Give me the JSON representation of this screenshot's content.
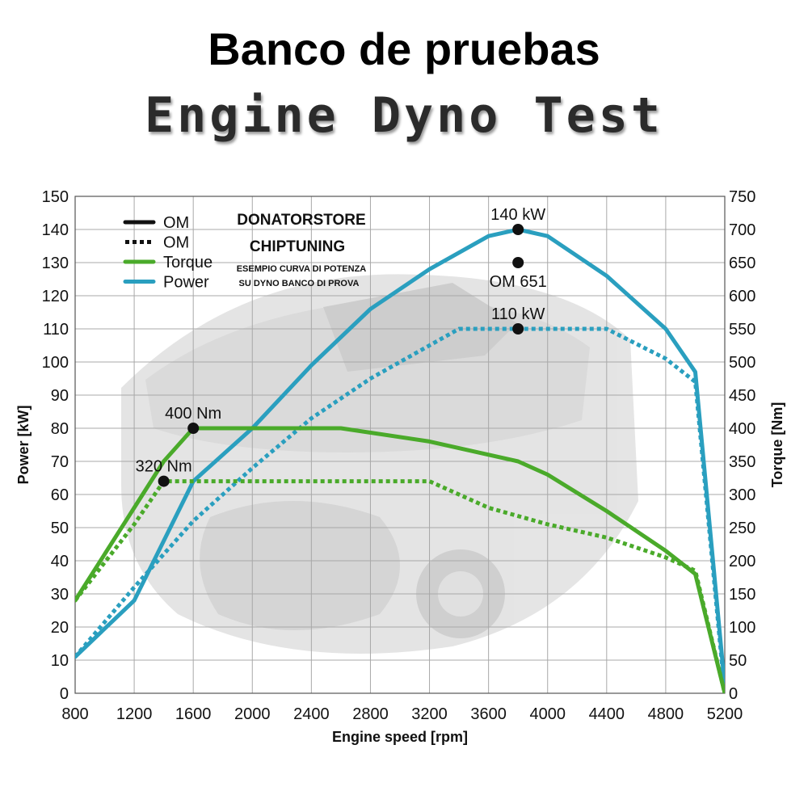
{
  "header": {
    "title": "Banco de pruebas",
    "subtitle": "Engine Dyno Test"
  },
  "branding": {
    "line1": "DONATORSTORE",
    "line2": "CHIPTUNING",
    "line3": "ESEMPIO CURVA DI POTENZA",
    "line4": "SU DYNO BANCO DI PROVA"
  },
  "chart_data": {
    "type": "line",
    "xlabel": "Engine speed [rpm]",
    "ylabel": "Power [kW]",
    "y2label": "Torque [Nm]",
    "xlim": [
      800,
      5200
    ],
    "ylim": [
      0,
      150
    ],
    "y2lim": [
      0,
      750
    ],
    "xticks": [
      800,
      1200,
      1600,
      2000,
      2400,
      2800,
      3200,
      3600,
      4000,
      4400,
      4800,
      5200
    ],
    "yticks": [
      0,
      10,
      20,
      30,
      40,
      50,
      60,
      70,
      80,
      90,
      100,
      110,
      120,
      130,
      140,
      150
    ],
    "y2ticks": [
      0,
      50,
      100,
      150,
      200,
      250,
      300,
      350,
      400,
      450,
      500,
      550,
      600,
      650,
      700,
      750
    ],
    "grid": true,
    "legend_position": "top-left",
    "legend": [
      {
        "label": "OM",
        "style": "solid",
        "color": "#111111"
      },
      {
        "label": "OM",
        "style": "dotted",
        "color": "#111111"
      },
      {
        "label": "Torque",
        "style": "solid",
        "color": "#4aaa2a"
      },
      {
        "label": "Power",
        "style": "solid",
        "color": "#2a9fbf"
      }
    ],
    "series": [
      {
        "name": "Power",
        "axis": "left",
        "style": "solid",
        "color": "#2a9fbf",
        "points": [
          [
            800,
            11
          ],
          [
            1200,
            28
          ],
          [
            1600,
            64
          ],
          [
            2000,
            80
          ],
          [
            2400,
            99
          ],
          [
            2800,
            116
          ],
          [
            3200,
            128
          ],
          [
            3600,
            138
          ],
          [
            3800,
            140
          ],
          [
            4000,
            138
          ],
          [
            4400,
            126
          ],
          [
            4800,
            110
          ],
          [
            5000,
            97
          ],
          [
            5200,
            2
          ]
        ]
      },
      {
        "name": "Power",
        "axis": "left",
        "style": "dotted",
        "color": "#2a9fbf",
        "points": [
          [
            800,
            11
          ],
          [
            1200,
            32
          ],
          [
            1600,
            52
          ],
          [
            2000,
            68
          ],
          [
            2400,
            83
          ],
          [
            2800,
            95
          ],
          [
            3200,
            105
          ],
          [
            3400,
            110
          ],
          [
            3800,
            110
          ],
          [
            4400,
            110
          ],
          [
            4800,
            101
          ],
          [
            5000,
            94
          ],
          [
            5200,
            0
          ]
        ]
      },
      {
        "name": "Torque",
        "axis": "right",
        "style": "solid",
        "color": "#4aaa2a",
        "points": [
          [
            800,
            140
          ],
          [
            1200,
            280
          ],
          [
            1400,
            350
          ],
          [
            1600,
            400
          ],
          [
            2000,
            400
          ],
          [
            2400,
            400
          ],
          [
            2600,
            400
          ],
          [
            3200,
            380
          ],
          [
            3800,
            350
          ],
          [
            4000,
            330
          ],
          [
            4400,
            275
          ],
          [
            4800,
            215
          ],
          [
            5000,
            180
          ],
          [
            5200,
            0
          ]
        ]
      },
      {
        "name": "Torque",
        "axis": "right",
        "style": "dotted",
        "color": "#4aaa2a",
        "points": [
          [
            800,
            140
          ],
          [
            1200,
            255
          ],
          [
            1400,
            320
          ],
          [
            2000,
            320
          ],
          [
            2600,
            320
          ],
          [
            3200,
            320
          ],
          [
            3600,
            280
          ],
          [
            4000,
            255
          ],
          [
            4400,
            235
          ],
          [
            4800,
            205
          ],
          [
            5000,
            185
          ],
          [
            5200,
            0
          ]
        ]
      }
    ],
    "annotations": [
      {
        "text": "140 kW",
        "x": 3800,
        "y": 140,
        "axis": "left",
        "label_pos": "above"
      },
      {
        "text": "OM 651",
        "x": 3800,
        "y": 130,
        "axis": "left",
        "label_pos": "below"
      },
      {
        "text": "110 kW",
        "x": 3800,
        "y": 110,
        "axis": "left",
        "label_pos": "above"
      },
      {
        "text": "400 Nm",
        "x": 1600,
        "y": 400,
        "axis": "right",
        "label_pos": "above"
      },
      {
        "text": "320 Nm",
        "x": 1400,
        "y": 320,
        "axis": "right",
        "label_pos": "above"
      }
    ]
  }
}
